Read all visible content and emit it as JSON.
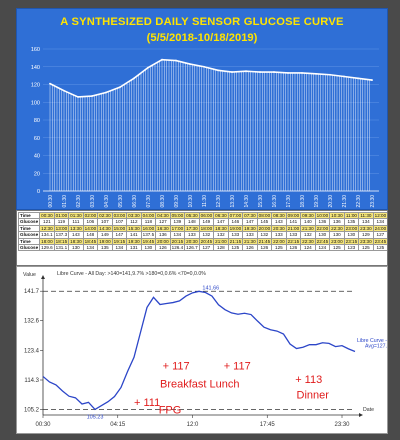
{
  "top": {
    "title": "A SYNTHESIZED DAILY SENSOR GLUCOSE CURVE",
    "subtitle": "(5/5/2018-10/18/2019)",
    "colors": {
      "background": "#2f6fd6",
      "line": "#ffffff",
      "text": "#ffe400",
      "grid": "#5f93e6"
    }
  },
  "bottom": {
    "legend_title": "Libre Curve - All Day: >140=141,9.7%  >180=0,0.6%  <70=0,0.0%",
    "series_label": "Libre Curve - All Day",
    "series_sublabel": "Avg=127.17",
    "peak_label": "141.66",
    "min_label": "105.23",
    "y_axis_label": "Value",
    "x_axis_label": "Date",
    "annotations": [
      {
        "id": "fpg-value",
        "text": "+ 111"
      },
      {
        "id": "fpg-label",
        "text": "FPG"
      },
      {
        "id": "breakfast-value",
        "text": "+ 117"
      },
      {
        "id": "lunch-value",
        "text": "+ 117"
      },
      {
        "id": "meal-labels",
        "text": "Breakfast Lunch"
      },
      {
        "id": "dinner-value",
        "text": "+ 113"
      },
      {
        "id": "dinner-label",
        "text": "Dinner"
      }
    ],
    "colors": {
      "line": "#2c46c8",
      "dashed": "#333333",
      "annotation": "#e01b1b"
    }
  },
  "table": {
    "row_label_time": "Time",
    "row_label_glucose": "Glucose",
    "rows": [
      {
        "times": [
          "00:30",
          "01:00",
          "01:30",
          "02:00",
          "02:30",
          "03:00",
          "03:30",
          "04:00",
          "04:30",
          "05:00",
          "05:30",
          "06:00",
          "06:30",
          "07:00",
          "07:30",
          "08:00",
          "08:30",
          "09:00",
          "09:30",
          "10:00",
          "10:30",
          "11:00",
          "11:30",
          "12:00"
        ],
        "glucose": [
          "121",
          "119",
          "111",
          "106",
          "107",
          "107",
          "112",
          "118",
          "127",
          "139",
          "148",
          "149",
          "147",
          "146",
          "147",
          "145",
          "143",
          "141",
          "140",
          "136",
          "136",
          "135",
          "134",
          "134"
        ]
      },
      {
        "times": [
          "12:30",
          "13:00",
          "13:30",
          "14:00",
          "14:30",
          "15:00",
          "15:30",
          "16:00",
          "16:30",
          "17:00",
          "17:30",
          "18:00",
          "18:30",
          "19:00",
          "19:30",
          "20:00",
          "20:30",
          "21:00",
          "21:30",
          "22:00",
          "22:30",
          "23:00",
          "23:30",
          "24:00"
        ],
        "glucose": [
          "134.1",
          "137.3",
          "143",
          "148",
          "149",
          "147",
          "141",
          "137.5",
          "136",
          "134",
          "133",
          "132",
          "132",
          "133",
          "133",
          "132",
          "133",
          "133",
          "132",
          "130",
          "130",
          "130",
          "129",
          "127"
        ]
      },
      {
        "times": [
          "18:00",
          "18:15",
          "18:30",
          "18:45",
          "19:00",
          "19:15",
          "19:30",
          "19:45",
          "20:00",
          "20:15",
          "20:30",
          "20:45",
          "21:00",
          "21:15",
          "21:30",
          "21:45",
          "22:00",
          "22:15",
          "22:30",
          "22:45",
          "23:00",
          "23:15",
          "23:30",
          "23:45"
        ],
        "glucose": [
          "129.6",
          "131.1",
          "130",
          "134",
          "135",
          "134",
          "131",
          "130",
          "126",
          "126.4",
          "126.7",
          "127",
          "128",
          "125",
          "126",
          "126",
          "125",
          "126",
          "124",
          "124",
          "125",
          "123",
          "125",
          "125"
        ]
      }
    ]
  },
  "chart_data": [
    {
      "type": "area",
      "title": "A SYNTHESIZED DAILY SENSOR GLUCOSE CURVE",
      "subtitle": "(5/5/2018-10/18/2019)",
      "ylim": [
        0,
        160
      ],
      "yticks": [
        0,
        20,
        40,
        60,
        80,
        100,
        120,
        140,
        160
      ],
      "grid": true,
      "categories": [
        "00:30",
        "01:30",
        "02:30",
        "03:30",
        "04:30",
        "05:30",
        "06:30",
        "07:30",
        "08:30",
        "09:30",
        "10:30",
        "11:30",
        "12:30",
        "13:30",
        "14:30",
        "15:30",
        "16:30",
        "17:30",
        "18:30",
        "19:30",
        "20:30",
        "21:30",
        "22:30",
        "23:30"
      ],
      "values": [
        121,
        113,
        106,
        107,
        111,
        117,
        127,
        139,
        148,
        147,
        143,
        140,
        136,
        134,
        135,
        134,
        134,
        133,
        133,
        132,
        131,
        129,
        127,
        125
      ]
    },
    {
      "type": "line",
      "y_ticks": [
        105.2,
        114.3,
        123.4,
        132.6,
        141.7
      ],
      "ylim": [
        103.5,
        143.0
      ],
      "x_ticks": [
        "00:30",
        "04:15",
        "12:0",
        "17:45",
        "23:30"
      ],
      "x_hours": [
        0.0,
        24.0
      ],
      "peak": {
        "x": 11.8,
        "y": 141.66
      },
      "minimum": {
        "x": 4.0,
        "y": 105.23
      },
      "series": [
        {
          "name": "Libre Curve - All Day",
          "x": [
            0.0,
            0.5,
            1.0,
            1.5,
            2.0,
            2.5,
            3.0,
            3.5,
            4.0,
            4.5,
            5.0,
            5.5,
            6.0,
            6.5,
            7.0,
            7.5,
            8.0,
            8.5,
            9.0,
            9.5,
            10.0,
            10.5,
            11.0,
            11.5,
            12.0,
            12.5,
            13.0,
            13.5,
            14.0,
            14.5,
            15.0,
            15.5,
            16.0,
            16.5,
            17.0,
            17.5,
            18.0,
            18.5,
            19.0,
            19.5,
            20.0,
            20.5,
            21.0,
            21.5,
            22.0,
            22.5,
            23.0,
            23.5,
            24.0
          ],
          "y": [
            115.4,
            113.7,
            112.8,
            110.9,
            109.3,
            108.8,
            106.9,
            107.4,
            105.23,
            106.4,
            107.6,
            109.2,
            112.0,
            116.9,
            121.3,
            129.0,
            136.7,
            139.8,
            137.6,
            137.9,
            138.2,
            138.7,
            140.2,
            141.2,
            141.66,
            141.3,
            140.2,
            137.5,
            136.0,
            135.0,
            134.6,
            134.9,
            134.5,
            132.5,
            130.6,
            129.8,
            129.4,
            128.5,
            125.4,
            124.0,
            124.4,
            125.2,
            125.2,
            125.8,
            125.6,
            124.6,
            124.9,
            123.9,
            123.1
          ]
        }
      ]
    }
  ]
}
